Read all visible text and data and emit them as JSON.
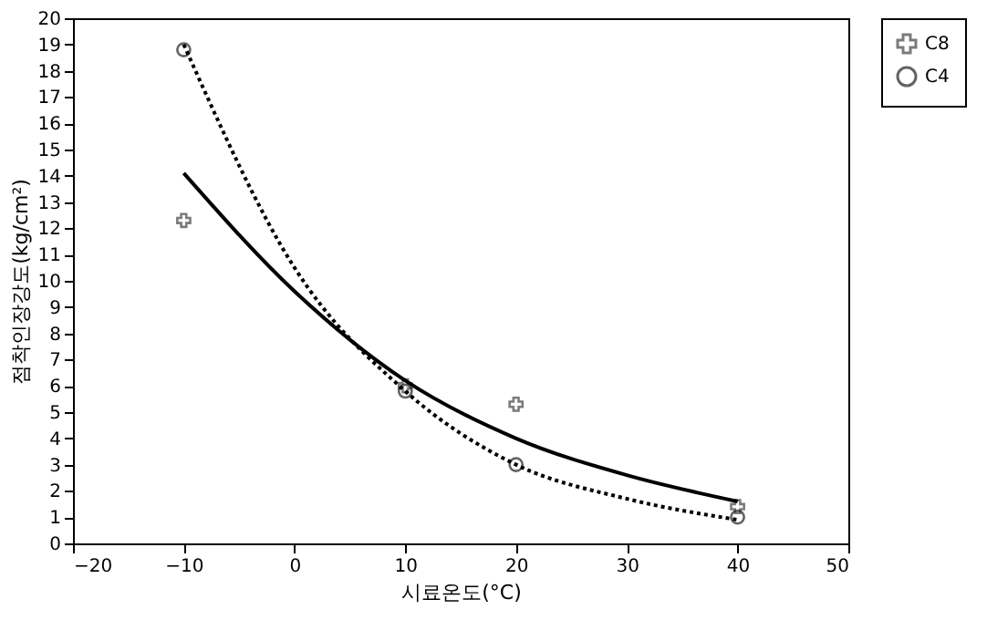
{
  "chart_data": {
    "type": "scatter",
    "xlabel": "시료온도(°C)",
    "ylabel": "점착인장강도(kg/cm²)",
    "xlim": [
      -20,
      50
    ],
    "xticks": [
      -20,
      -10,
      0,
      10,
      20,
      30,
      40,
      50
    ],
    "ylim": [
      0,
      20
    ],
    "yticks": [
      0,
      1,
      2,
      3,
      4,
      5,
      6,
      7,
      8,
      9,
      10,
      11,
      12,
      13,
      14,
      15,
      16,
      17,
      18,
      19,
      20
    ],
    "grid": false,
    "legend": "right",
    "series": [
      {
        "name": "C8",
        "color": "#444444",
        "marker": "cross",
        "x": [
          -10,
          10,
          20,
          40
        ],
        "values": [
          12.3,
          6.0,
          5.3,
          1.4
        ]
      },
      {
        "name": "C4",
        "color": "#222222",
        "marker": "circle",
        "x": [
          -10,
          10,
          20,
          40
        ],
        "values": [
          18.8,
          5.8,
          3.0,
          1.0
        ]
      },
      {
        "type": "line",
        "color": "#000000",
        "line_style": "solid",
        "marker": "none",
        "x": [
          -10,
          0,
          10,
          20,
          30,
          40
        ],
        "values": [
          14.1,
          9.6,
          6.2,
          4.0,
          2.6,
          1.6
        ]
      },
      {
        "type": "line",
        "color": "#000000",
        "line_style": "dotted",
        "marker": "none",
        "x": [
          -10,
          0,
          10,
          20,
          30,
          40
        ],
        "values": [
          19.0,
          10.5,
          5.8,
          3.0,
          1.7,
          0.9
        ]
      }
    ]
  }
}
